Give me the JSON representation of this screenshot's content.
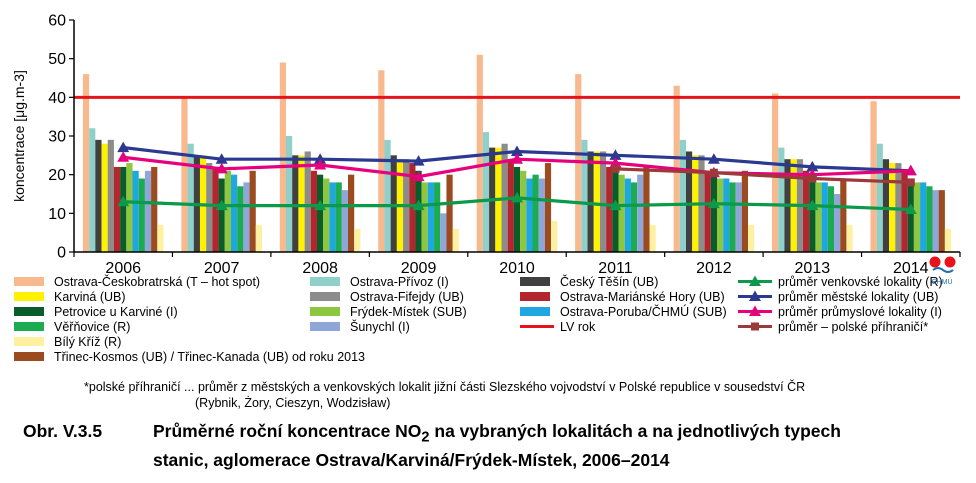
{
  "chart_data": {
    "type": "bar",
    "title": "",
    "xlabel": "",
    "ylabel": "koncentrace [μg.m-3]",
    "ylim": [
      0,
      60
    ],
    "yticks": [
      0,
      10,
      20,
      30,
      40,
      50,
      60
    ],
    "categories": [
      "2006",
      "2007",
      "2008",
      "2009",
      "2010",
      "2011",
      "2012",
      "2013",
      "2014"
    ],
    "grid": false,
    "legend_position": "bottom",
    "series": [
      {
        "name": "Ostrava-Českobratrská (T – hot spot)",
        "kind": "bar",
        "color": "#f7b98d",
        "values": [
          46,
          40,
          49,
          47,
          51,
          46,
          43,
          41,
          39
        ]
      },
      {
        "name": "Ostrava-Přívoz (I)",
        "kind": "bar",
        "color": "#8fd0cb",
        "values": [
          32,
          28,
          30,
          29,
          31,
          29,
          29,
          27,
          28
        ]
      },
      {
        "name": "Český Těšín (UB)",
        "kind": "bar",
        "color": "#404040",
        "values": [
          29,
          25,
          25,
          25,
          27,
          26,
          26,
          24,
          24
        ]
      },
      {
        "name": "Karviná (UB)",
        "kind": "bar",
        "color": "#fff200",
        "values": [
          28,
          25,
          25,
          24,
          27,
          26,
          25,
          24,
          23
        ]
      },
      {
        "name": "Ostrava-Fifejdy (UB)",
        "kind": "bar",
        "color": "#8c8c8c",
        "values": [
          29,
          23,
          26,
          24,
          28,
          26,
          25,
          24,
          23
        ]
      },
      {
        "name": "Ostrava-Mariánské Hory (UB)",
        "kind": "bar",
        "color": "#b3262d",
        "values": [
          22,
          22,
          21,
          23,
          24,
          22,
          21,
          21,
          21
        ]
      },
      {
        "name": "Petrovice u Karviné (I)",
        "kind": "bar",
        "color": "#0a5c2a",
        "values": [
          22,
          19,
          20,
          21,
          22,
          21,
          20,
          20,
          19
        ]
      },
      {
        "name": "Frýdek-Místek (SUB)",
        "kind": "bar",
        "color": "#8dc63f",
        "values": [
          23,
          21,
          19,
          18,
          21,
          20,
          19,
          18,
          18
        ]
      },
      {
        "name": "Ostrava-Poruba/ČHMÚ (SUB)",
        "kind": "bar",
        "color": "#1ea7e1",
        "values": [
          21,
          20,
          18,
          18,
          19,
          19,
          19,
          18,
          18
        ]
      },
      {
        "name": "Věřňovice (R)",
        "kind": "bar",
        "color": "#1dab52",
        "values": [
          19,
          17,
          18,
          18,
          20,
          18,
          18,
          17,
          17
        ]
      },
      {
        "name": "Šunychl (I)",
        "kind": "bar",
        "color": "#8ea7d8",
        "values": [
          21,
          18,
          16,
          10,
          19,
          20,
          18,
          15,
          16
        ]
      },
      {
        "name": "Třinec-Kosmos (UB) / Třinec-Kanada (UB) od roku 2013",
        "kind": "bar",
        "color": "#9c4a1f",
        "values": [
          22,
          21,
          20,
          20,
          23,
          22,
          21,
          19,
          16
        ]
      },
      {
        "name": "Bílý Kříž (R)",
        "kind": "bar",
        "color": "#fdf0a0",
        "values": [
          7,
          7,
          6,
          6,
          8,
          7,
          7,
          7,
          6
        ]
      },
      {
        "name": "průměr venkovské lokality (R)",
        "kind": "line",
        "color": "#0b9a4a",
        "marker": "triangle",
        "values": [
          13,
          12,
          12,
          12,
          14,
          12,
          12.5,
          12,
          11
        ]
      },
      {
        "name": "průměr městské lokality (UB)",
        "kind": "line",
        "color": "#2b3990",
        "marker": "triangle",
        "values": [
          27,
          24,
          24,
          23.5,
          26,
          25,
          24,
          22,
          21
        ]
      },
      {
        "name": "průměr průmyslové lokality (I)",
        "kind": "line",
        "color": "#e6007e",
        "marker": "triangle",
        "values": [
          24.5,
          21.5,
          22.5,
          19.5,
          24,
          23,
          20.5,
          20,
          21
        ]
      },
      {
        "name": "průměr – polské příhraničí*",
        "kind": "line",
        "color": "#9c3a3a",
        "marker": "square",
        "values": [
          null,
          null,
          null,
          null,
          null,
          21.5,
          20.5,
          19,
          18
        ]
      },
      {
        "name": "LV rok",
        "kind": "hline",
        "color": "#e8121b",
        "value": 40
      }
    ],
    "legend_order": [
      "Ostrava-Českobratrská (T – hot spot)",
      "Ostrava-Přívoz (I)",
      "Český Těšín (UB)",
      "průměr venkovské lokality (R)",
      "Karviná (UB)",
      "Ostrava-Fifejdy (UB)",
      "Ostrava-Mariánské Hory (UB)",
      "průměr městské lokality (UB)",
      "Petrovice u Karviné (I)",
      "Frýdek-Místek (SUB)",
      "Ostrava-Poruba/ČHMÚ (SUB)",
      "průměr průmyslové lokality (I)",
      "Věřňovice (R)",
      "Šunychl (I)",
      "LV rok",
      "průměr – polské příhraničí*",
      "Bílý Kříž (R)",
      "Třinec-Kosmos (UB) / Třinec-Kanada (UB) od roku 2013"
    ]
  },
  "logo_text": "ČHMÚ",
  "footnote": {
    "line1": "*polské příhraničí ... průměr z městských a venkovských lokalit jižní části Slezského vojvodství v Polské republice v sousedství ČR",
    "line2": "(Rybnik, Żory, Cieszyn, Wodzisław)"
  },
  "caption": {
    "prefix": "Obr. V.3.5",
    "line1_before": "Průměrné roční koncentrace NO",
    "line1_sub": "2",
    "line1_after": " na vybraných lokalitách a na jednotlivých typech",
    "line2": "stanic, aglomerace Ostrava/Karviná/Frýdek-Místek, 2006–2014"
  }
}
